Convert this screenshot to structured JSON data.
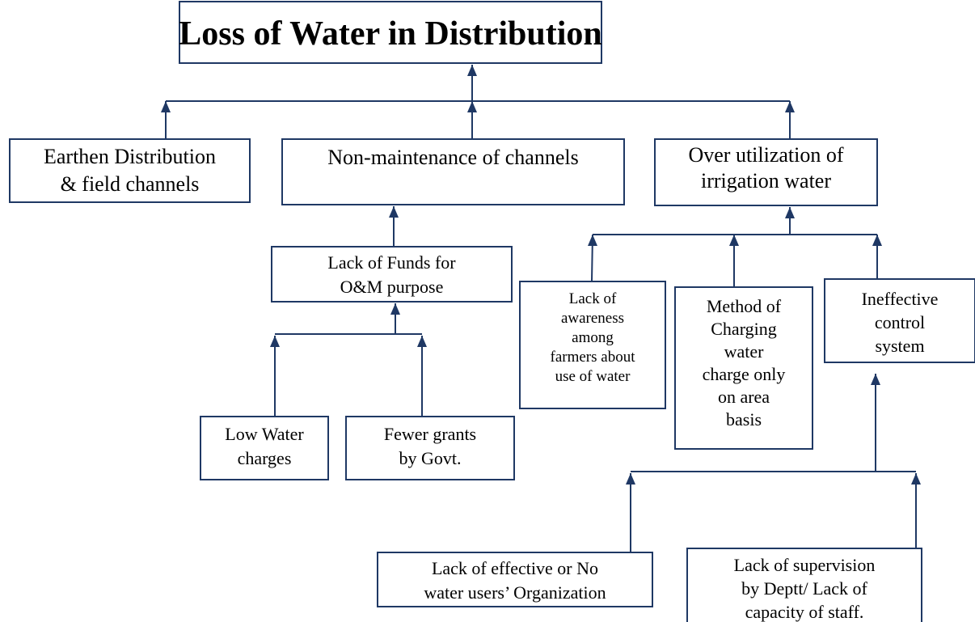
{
  "title": "Loss of Water in Distribution",
  "nodes": [
    {
      "lines": [
        "Earthen Distribution",
        "& field channels"
      ]
    },
    {
      "lines": [
        "Non-maintenance of channels"
      ]
    },
    {
      "lines": [
        "Over utilization of",
        "irrigation water"
      ]
    },
    {
      "lines": [
        "Lack of Funds for",
        "O&M purpose"
      ]
    },
    {
      "lines": [
        "Lack of",
        "awareness",
        "among",
        "farmers about",
        "use of water"
      ]
    },
    {
      "lines": [
        "Method of",
        "Charging",
        "water",
        "charge only",
        "on area",
        "basis"
      ]
    },
    {
      "lines": [
        "Ineffective",
        "control",
        "system"
      ]
    },
    {
      "lines": [
        "Low Water",
        "charges"
      ]
    },
    {
      "lines": [
        "Fewer grants",
        "by Govt."
      ]
    },
    {
      "lines": [
        "Lack of effective or No",
        "water users’ Organization"
      ]
    },
    {
      "lines": [
        "Lack of supervision",
        "by Deptt/ Lack of",
        "capacity of staff."
      ]
    }
  ]
}
